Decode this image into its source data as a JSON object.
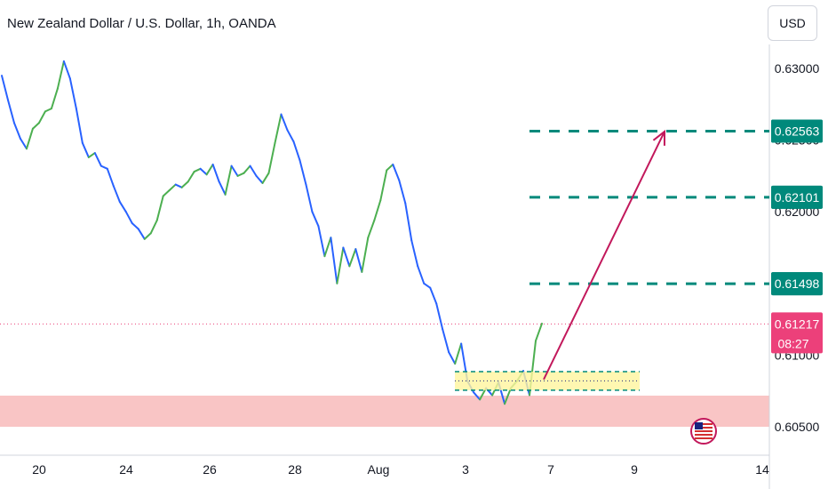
{
  "header": {
    "title": "New Zealand Dollar / U.S. Dollar, 1h, OANDA",
    "currency": "USD"
  },
  "colors": {
    "up": "#26a69a",
    "candle_up": "#4caf50",
    "candle_down": "#2962ff",
    "target_line": "#00897b",
    "arrow": "#c2185b",
    "current_price_badge": "#ec407a",
    "support_zone": "#f8bbbb",
    "entry_zone": "#fff59d"
  },
  "icons": {
    "event_flag": "us-flag-icon"
  },
  "chart_data": {
    "type": "line",
    "xlabel": "",
    "ylabel": "",
    "x_ticks": [
      "20",
      "24",
      "26",
      "28",
      "Aug",
      "3",
      "7",
      "9",
      "14"
    ],
    "y_ticks": [
      0.63,
      0.625,
      0.62,
      0.615,
      0.61,
      0.605
    ],
    "y_tick_labels": [
      "0.63000",
      "0.62500",
      "0.62000",
      "0.61500",
      "0.61000",
      "0.60500"
    ],
    "ylim": [
      0.602,
      0.6325
    ],
    "grid": false,
    "series": [
      {
        "values": [
          0.6295,
          0.6278,
          0.6262,
          0.6251,
          0.6244,
          0.6258,
          0.6262,
          0.627,
          0.6272,
          0.6286,
          0.6305,
          0.6293,
          0.6272,
          0.6248,
          0.6238,
          0.6241,
          0.6232,
          0.623,
          0.6218,
          0.6207,
          0.62,
          0.6192,
          0.6188,
          0.6181,
          0.6185,
          0.6194,
          0.6211,
          0.6215,
          0.6219,
          0.6217,
          0.6221,
          0.6228,
          0.623,
          0.6226,
          0.6233,
          0.6221,
          0.6212,
          0.6232,
          0.6225,
          0.6227,
          0.6232,
          0.6225,
          0.622,
          0.6227,
          0.6248,
          0.6268,
          0.6257,
          0.6249,
          0.6236,
          0.6219,
          0.62,
          0.619,
          0.6169,
          0.6182,
          0.615,
          0.6175,
          0.6162,
          0.6174,
          0.6158,
          0.6182,
          0.6194,
          0.6208,
          0.6229,
          0.6233,
          0.6222,
          0.6206,
          0.618,
          0.6162,
          0.615,
          0.6147,
          0.6136,
          0.6118,
          0.6102,
          0.6094,
          0.6108,
          0.6082,
          0.6074,
          0.6069,
          0.6077,
          0.6072,
          0.6081,
          0.6066,
          0.6077,
          0.6082,
          0.6089,
          0.6072,
          0.611,
          0.6122
        ]
      }
    ],
    "current_price": "0.61217",
    "countdown": "08:27",
    "targets": [
      {
        "price": 0.62563,
        "label": "0.62563"
      },
      {
        "price": 0.62101,
        "label": "0.62101"
      },
      {
        "price": 0.61498,
        "label": "0.61498"
      }
    ],
    "entry_zone": [
      0.6078,
      0.6086
    ],
    "support_zone": [
      0.605,
      0.6068
    ],
    "arrow": {
      "from_price": 0.6083,
      "to_price": 0.6256,
      "direction": "up"
    }
  }
}
